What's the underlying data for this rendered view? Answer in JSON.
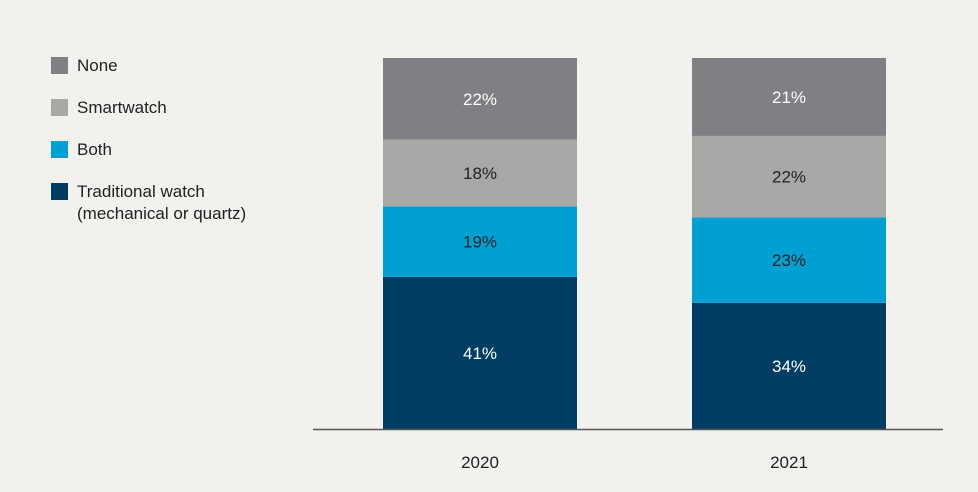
{
  "chart_data": {
    "type": "bar",
    "stacked": true,
    "categories": [
      "2020",
      "2021"
    ],
    "series": [
      {
        "name": "Traditional watch\n(mechanical or quartz)",
        "color": "#023d64",
        "label_color": "#ffffff",
        "values": [
          41,
          34
        ],
        "labels": [
          "41%",
          "34%"
        ]
      },
      {
        "name": "Both",
        "color": "#00a0d2",
        "label_color": "#222222",
        "values": [
          19,
          23
        ],
        "labels": [
          "19%",
          "23%"
        ]
      },
      {
        "name": "Smartwatch",
        "color": "#a8a9a7",
        "label_color": "#222222",
        "values": [
          18,
          22
        ],
        "labels": [
          "18%",
          "22%"
        ]
      },
      {
        "name": "None",
        "color": "#7f8083",
        "label_color": "#ffffff",
        "values": [
          22,
          21
        ],
        "labels": [
          "22%",
          "21%"
        ]
      }
    ],
    "legend_order": [
      "None",
      "Smartwatch",
      "Both",
      "Traditional watch\n(mechanical or quartz)"
    ],
    "legend_position": "left",
    "title": "",
    "xlabel": "",
    "ylabel": "",
    "ylim": [
      0,
      100
    ],
    "grid": false
  }
}
